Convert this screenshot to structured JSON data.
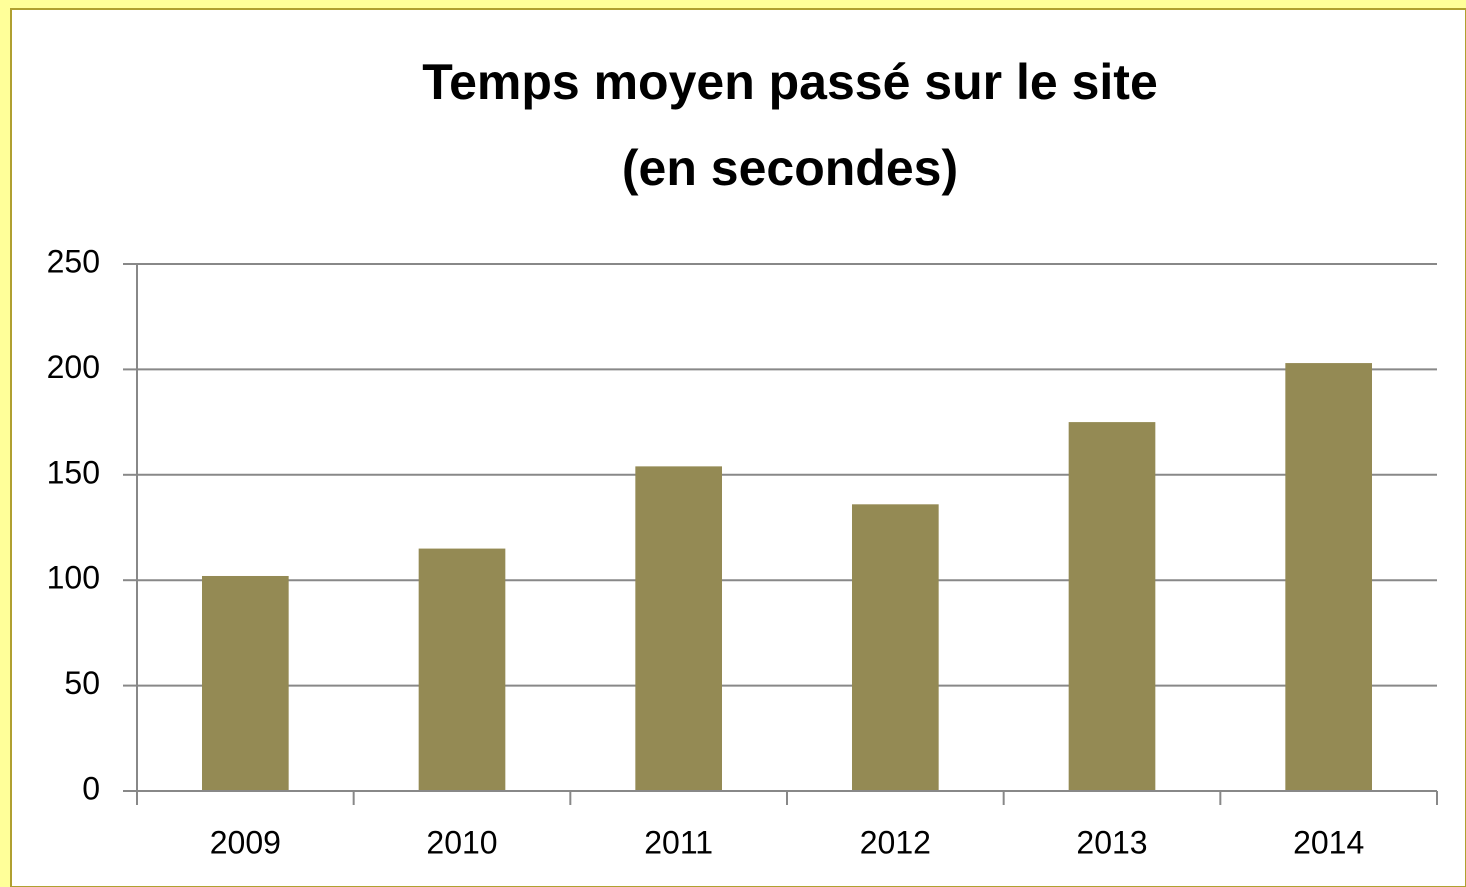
{
  "chart_data": {
    "type": "bar",
    "title": "Temps moyen passé sur le site",
    "subtitle": "(en secondes)",
    "categories": [
      "2009",
      "2010",
      "2011",
      "2012",
      "2013",
      "2014"
    ],
    "values": [
      102,
      115,
      154,
      136,
      175,
      203
    ],
    "color": "#948a54",
    "ylim": [
      0,
      250
    ],
    "yticks": [
      0,
      50,
      100,
      150,
      200,
      250
    ],
    "grid": true
  }
}
